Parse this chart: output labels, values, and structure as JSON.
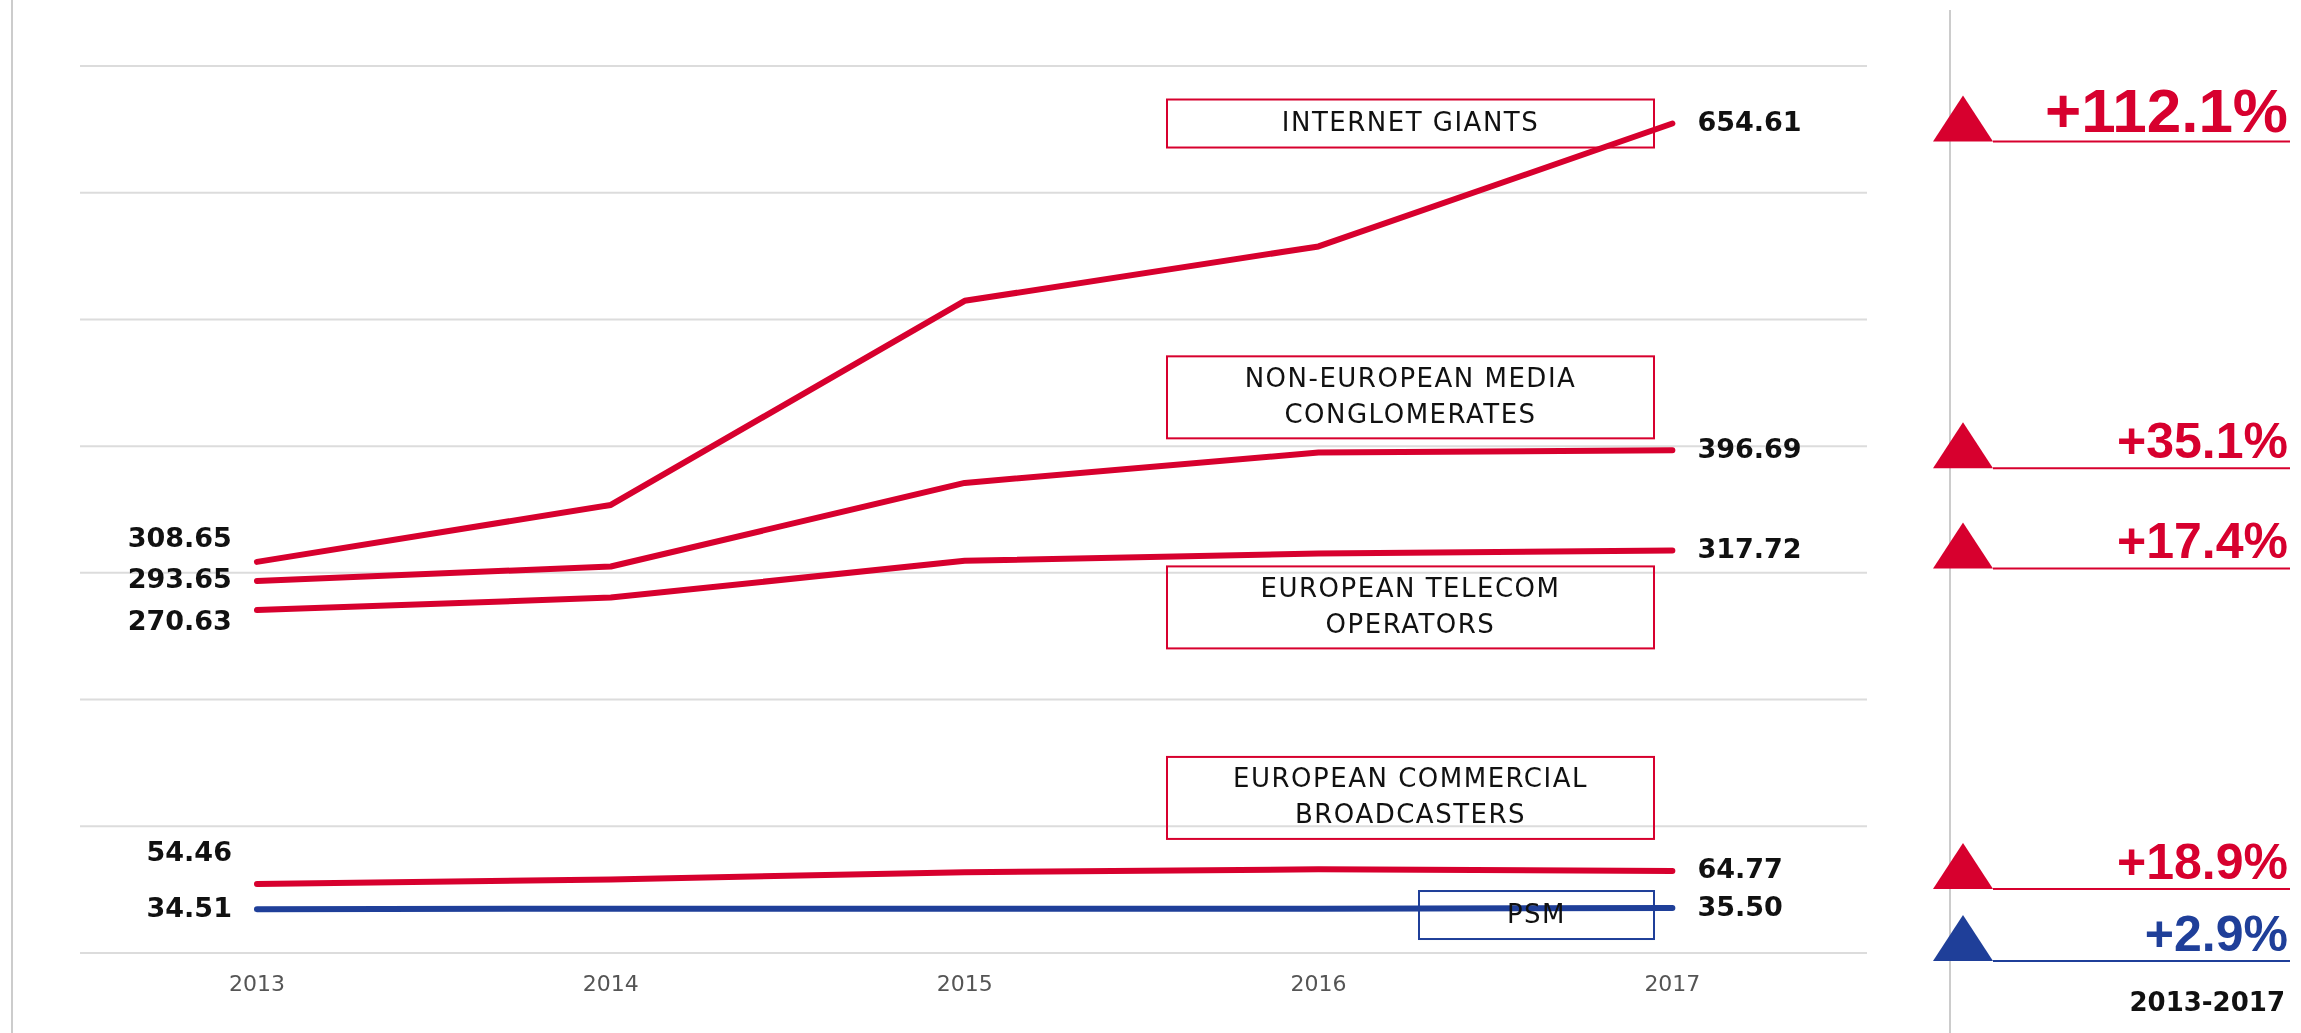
{
  "chart_data": {
    "type": "line",
    "x": [
      2013,
      2014,
      2015,
      2016,
      2017
    ],
    "xlim": [
      2012.5,
      2017.55
    ],
    "xticks": [
      2013,
      2014,
      2015,
      2016,
      2017
    ],
    "ylim": [
      0,
      700
    ],
    "yticks": [
      {
        "value": 0,
        "label": null
      },
      {
        "value": 100,
        "label": null
      },
      {
        "value": 200,
        "label": null
      },
      {
        "value": 300,
        "label": null
      },
      {
        "value": 400,
        "label": null
      },
      {
        "value": 500,
        "label": null
      },
      {
        "value": 600,
        "label": null
      },
      {
        "value": 700,
        "label": null
      }
    ],
    "tick_labels": "x",
    "grid": "y",
    "marker": "none",
    "line_style": "solid",
    "series": [
      {
        "name": "INTERNET GIANTS",
        "color": "#d7002e",
        "values": [
          308.65,
          353.6,
          514.7,
          557.6,
          654.61
        ],
        "value_labels": [
          "308.65",
          null,
          null,
          null,
          "654.61"
        ]
      },
      {
        "name": "NON-EUROPEAN MEDIA CONGLOMERATES",
        "color": "#d7002e",
        "values": [
          293.65,
          305,
          371,
          395,
          396.69
        ],
        "value_labels": [
          "293.65",
          null,
          null,
          null,
          "396.69"
        ]
      },
      {
        "name": "EUROPEAN TELECOM OPERATORS",
        "color": "#d7002e",
        "values": [
          270.63,
          280.5,
          309.5,
          315.3,
          317.72
        ],
        "value_labels": [
          "270.63",
          null,
          null,
          null,
          "317.72"
        ]
      },
      {
        "name": "EUROPEAN COMMERCIAL BROADCASTERS",
        "color": "#d7002e",
        "values": [
          54.46,
          58,
          63.8,
          66,
          64.77
        ],
        "value_labels": [
          "54.46",
          null,
          null,
          null,
          "64.77"
        ]
      },
      {
        "name": "PSM",
        "color": "#1f3f99",
        "values": [
          34.51,
          35,
          35,
          35,
          35.5
        ],
        "value_labels": [
          "34.51",
          null,
          null,
          null,
          "35.50"
        ]
      }
    ],
    "annotations": [
      "+112.1%",
      "+35.1%",
      "+17.4%",
      "+18.9%",
      "+2.9%",
      "2013-2017"
    ]
  }
}
